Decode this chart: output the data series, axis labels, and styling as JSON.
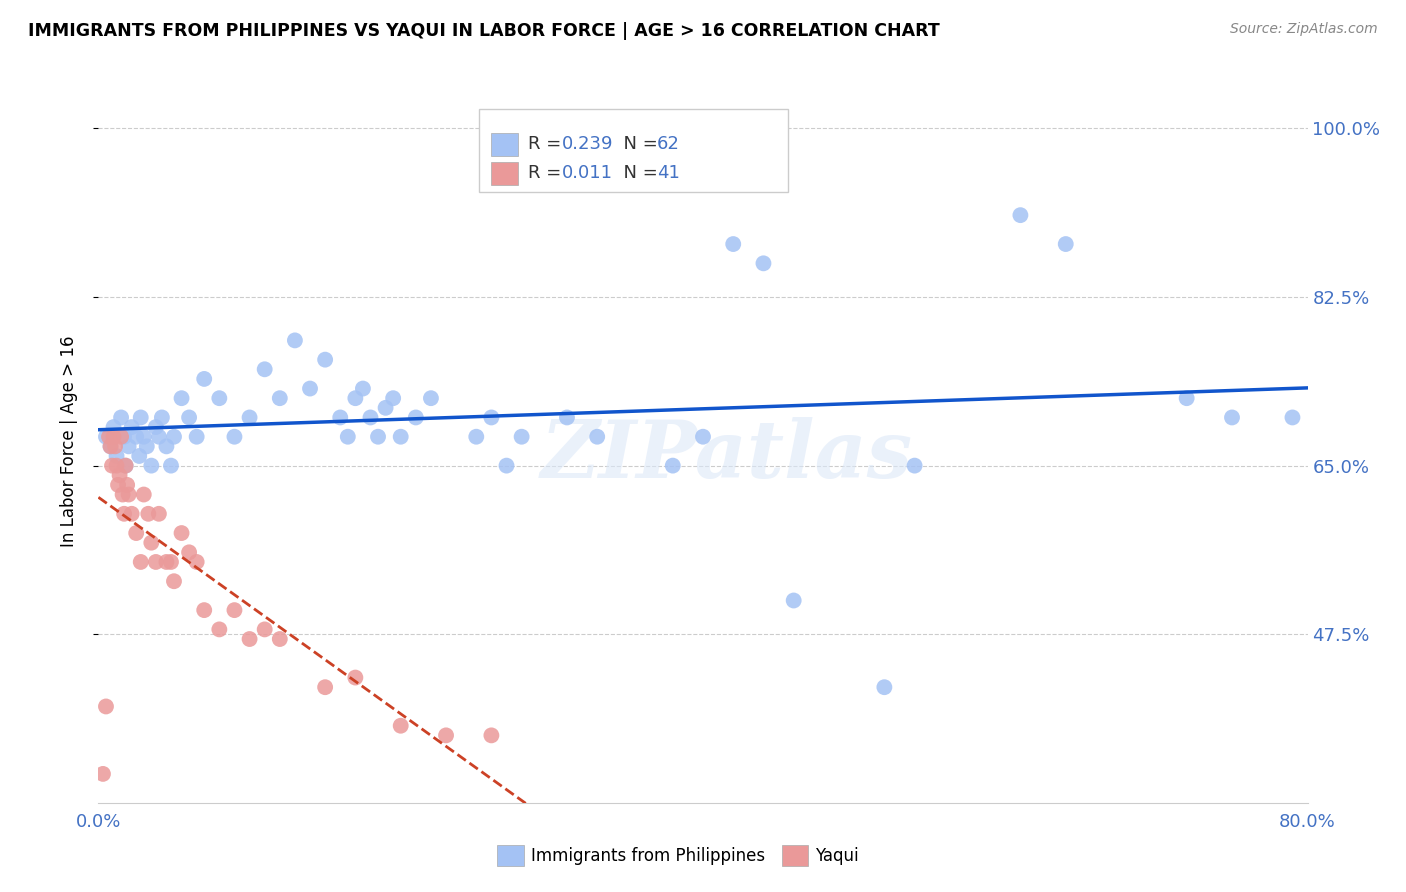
{
  "title": "IMMIGRANTS FROM PHILIPPINES VS YAQUI IN LABOR FORCE | AGE > 16 CORRELATION CHART",
  "source": "Source: ZipAtlas.com",
  "ylabel": "In Labor Force | Age > 16",
  "xlim": [
    0.0,
    0.8
  ],
  "ylim": [
    0.3,
    1.05
  ],
  "yticks": [
    0.475,
    0.65,
    0.825,
    1.0
  ],
  "ytick_labels": [
    "47.5%",
    "65.0%",
    "82.5%",
    "100.0%"
  ],
  "watermark": "ZIPatlas",
  "blue_R": 0.239,
  "blue_N": 62,
  "pink_R": 0.011,
  "pink_N": 41,
  "blue_color": "#a4c2f4",
  "pink_color": "#ea9999",
  "blue_line_color": "#1155cc",
  "pink_line_color": "#cc4125",
  "tick_color": "#4472c4",
  "legend_blue_label": "Immigrants from Philippines",
  "legend_pink_label": "Yaqui",
  "blue_x": [
    0.005,
    0.008,
    0.01,
    0.012,
    0.015,
    0.017,
    0.018,
    0.02,
    0.022,
    0.025,
    0.027,
    0.028,
    0.03,
    0.032,
    0.035,
    0.038,
    0.04,
    0.042,
    0.045,
    0.048,
    0.05,
    0.055,
    0.06,
    0.065,
    0.07,
    0.08,
    0.09,
    0.1,
    0.11,
    0.12,
    0.13,
    0.14,
    0.15,
    0.16,
    0.165,
    0.17,
    0.175,
    0.18,
    0.185,
    0.19,
    0.195,
    0.2,
    0.21,
    0.22,
    0.25,
    0.26,
    0.27,
    0.28,
    0.31,
    0.33,
    0.38,
    0.4,
    0.42,
    0.44,
    0.46,
    0.52,
    0.54,
    0.61,
    0.64,
    0.72,
    0.75,
    0.79
  ],
  "blue_y": [
    0.68,
    0.67,
    0.69,
    0.66,
    0.7,
    0.68,
    0.65,
    0.67,
    0.69,
    0.68,
    0.66,
    0.7,
    0.68,
    0.67,
    0.65,
    0.69,
    0.68,
    0.7,
    0.67,
    0.65,
    0.68,
    0.72,
    0.7,
    0.68,
    0.74,
    0.72,
    0.68,
    0.7,
    0.75,
    0.72,
    0.78,
    0.73,
    0.76,
    0.7,
    0.68,
    0.72,
    0.73,
    0.7,
    0.68,
    0.71,
    0.72,
    0.68,
    0.7,
    0.72,
    0.68,
    0.7,
    0.65,
    0.68,
    0.7,
    0.68,
    0.65,
    0.68,
    0.88,
    0.86,
    0.51,
    0.42,
    0.65,
    0.91,
    0.88,
    0.72,
    0.7,
    0.7
  ],
  "pink_x": [
    0.003,
    0.005,
    0.007,
    0.008,
    0.009,
    0.01,
    0.011,
    0.012,
    0.013,
    0.014,
    0.015,
    0.016,
    0.017,
    0.018,
    0.019,
    0.02,
    0.022,
    0.025,
    0.028,
    0.03,
    0.033,
    0.035,
    0.038,
    0.04,
    0.045,
    0.048,
    0.05,
    0.055,
    0.06,
    0.065,
    0.07,
    0.08,
    0.09,
    0.1,
    0.11,
    0.12,
    0.15,
    0.17,
    0.2,
    0.23,
    0.26
  ],
  "pink_y": [
    0.33,
    0.4,
    0.68,
    0.67,
    0.65,
    0.68,
    0.67,
    0.65,
    0.63,
    0.64,
    0.68,
    0.62,
    0.6,
    0.65,
    0.63,
    0.62,
    0.6,
    0.58,
    0.55,
    0.62,
    0.6,
    0.57,
    0.55,
    0.6,
    0.55,
    0.55,
    0.53,
    0.58,
    0.56,
    0.55,
    0.5,
    0.48,
    0.5,
    0.47,
    0.48,
    0.47,
    0.42,
    0.43,
    0.38,
    0.37,
    0.37
  ]
}
